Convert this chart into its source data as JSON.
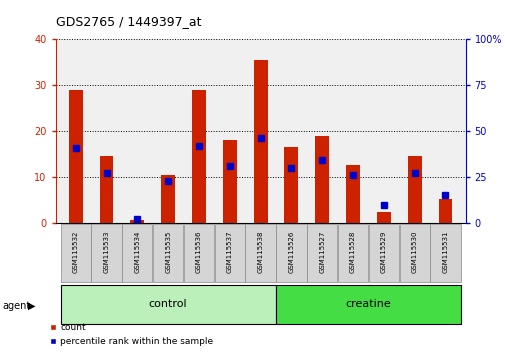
{
  "title": "GDS2765 / 1449397_at",
  "samples": [
    "GSM115532",
    "GSM115533",
    "GSM115534",
    "GSM115535",
    "GSM115536",
    "GSM115537",
    "GSM115538",
    "GSM115526",
    "GSM115527",
    "GSM115528",
    "GSM115529",
    "GSM115530",
    "GSM115531"
  ],
  "count_values": [
    29.0,
    14.5,
    0.7,
    10.5,
    29.0,
    18.0,
    35.5,
    16.5,
    19.0,
    12.5,
    2.5,
    14.5,
    5.2
  ],
  "percentile_values": [
    41,
    27,
    2,
    23,
    42,
    31,
    46,
    30,
    34,
    26,
    10,
    27,
    15
  ],
  "groups": [
    {
      "label": "control",
      "indices": [
        0,
        1,
        2,
        3,
        4,
        5,
        6
      ],
      "color": "#bbf0bb"
    },
    {
      "label": "creatine",
      "indices": [
        7,
        8,
        9,
        10,
        11,
        12
      ],
      "color": "#44dd44"
    }
  ],
  "left_ylim": [
    0,
    40
  ],
  "right_ylim": [
    0,
    100
  ],
  "left_yticks": [
    0,
    10,
    20,
    30,
    40
  ],
  "right_yticks": [
    0,
    25,
    50,
    75,
    100
  ],
  "left_ycolor": "#cc2200",
  "right_ycolor": "#0000cc",
  "bar_color": "#cc2200",
  "marker_color": "#0000cc",
  "bg_color": "#f0f0f0",
  "bar_width": 0.45,
  "figsize": [
    5.06,
    3.54
  ],
  "dpi": 100
}
